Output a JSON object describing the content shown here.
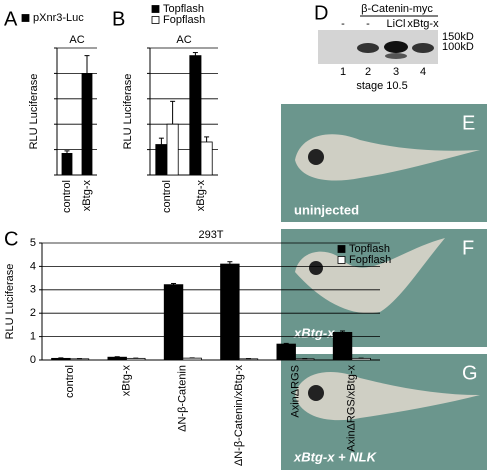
{
  "chart_data": [
    {
      "type": "bar",
      "label": "A",
      "title": "AC",
      "y_label": "RLU Luciferase",
      "categories": [
        "control",
        "xBtg-x"
      ],
      "series": [
        {
          "name": "pXnr3-Luc",
          "color": "#000000",
          "values": [
            0.85,
            4.0
          ],
          "errors": [
            0.1,
            0.7
          ]
        }
      ],
      "ylim": [
        0,
        5
      ],
      "yticks": [
        0,
        1,
        2,
        3,
        4,
        5
      ],
      "tick_labels": false,
      "grid": true
    },
    {
      "type": "bar",
      "label": "B",
      "title": "AC",
      "y_label": "RLU Luciferase",
      "categories": [
        "control",
        "xBtg-x"
      ],
      "series": [
        {
          "name": "Topflash",
          "color": "#000000",
          "values": [
            1.2,
            4.7
          ],
          "errors": [
            0.25,
            0.12
          ]
        },
        {
          "name": "Fopflash",
          "color": "#ffffff",
          "values": [
            2.0,
            1.3
          ],
          "errors": [
            0.9,
            0.2
          ]
        }
      ],
      "ylim": [
        0,
        5
      ],
      "yticks": [
        0,
        1,
        2,
        3,
        4,
        5
      ],
      "tick_labels": false,
      "grid": true
    },
    {
      "type": "bar",
      "label": "C",
      "title": "293T",
      "y_label": "RLU Luciferase",
      "categories": [
        "control",
        "xBtg-x",
        "ΔN-β-Catenin",
        "ΔN-β-Catenin/xBtg-x",
        "AxinΔRGS",
        "AxinΔRGS/xBtg-x"
      ],
      "series": [
        {
          "name": "Topflash",
          "color": "#000000",
          "values": [
            0.07,
            0.12,
            3.22,
            4.1,
            0.68,
            1.18
          ],
          "errors": [
            0.02,
            0.02,
            0.05,
            0.1,
            0.03,
            0.06
          ]
        },
        {
          "name": "Fopflash",
          "color": "#ffffff",
          "values": [
            0.05,
            0.07,
            0.08,
            0.05,
            0.05,
            0.07
          ],
          "errors": [
            0.01,
            0.01,
            0.01,
            0.01,
            0.01,
            0.01
          ]
        }
      ],
      "ylim": [
        0,
        5
      ],
      "yticks": [
        0,
        1,
        2,
        3,
        4,
        5
      ],
      "tick_labels": true,
      "grid": true
    }
  ],
  "blot": {
    "label": "D",
    "title": "β-Catenin-myc",
    "lanes": [
      "-",
      "-",
      "LiCl",
      "xBtg-x"
    ],
    "lane_numbers": [
      "1",
      "2",
      "3",
      "4"
    ],
    "markers": [
      "150kD",
      "100kD"
    ],
    "caption": "stage 10.5"
  },
  "images": [
    {
      "label": "E",
      "caption": "uninjected"
    },
    {
      "label": "F",
      "caption": "xBtg-x"
    },
    {
      "label": "G",
      "caption": "xBtg-x + NLK"
    }
  ]
}
